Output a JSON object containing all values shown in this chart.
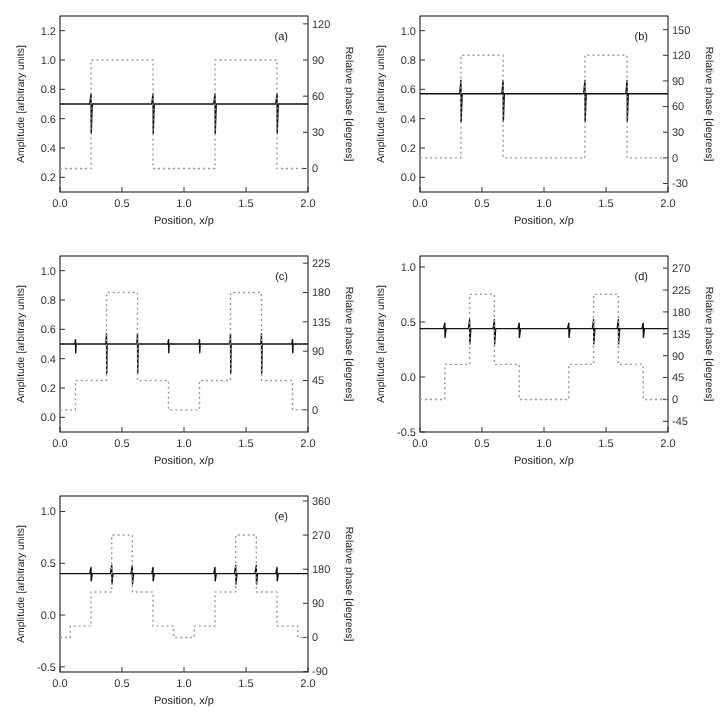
{
  "chart_data": [
    {
      "type": "line",
      "xlabel": "Position, x/p",
      "ylabel": "Amplitude [arbitrary units]",
      "y2label": "Relative phase [degrees]",
      "annotations": [
        "(a)"
      ],
      "xlim": [
        0,
        2
      ],
      "xticks": [
        {
          "value": 0,
          "label": "0.0"
        },
        {
          "value": 0.5,
          "label": "0.5"
        },
        {
          "value": 1,
          "label": "1.0"
        },
        {
          "value": 1.5,
          "label": "1.5"
        },
        {
          "value": 2,
          "label": "2.0"
        }
      ],
      "ylim": [
        0.1,
        1.3
      ],
      "yticks": [
        {
          "value": 0.2,
          "label": "0.2"
        },
        {
          "value": 0.4,
          "label": "0.4"
        },
        {
          "value": 0.6,
          "label": "0.6"
        },
        {
          "value": 0.8,
          "label": "0.8"
        },
        {
          "value": 1,
          "label": "1.0"
        },
        {
          "value": 1.2,
          "label": "1.2"
        }
      ],
      "y2lim": [
        -19.5,
        126.5
      ],
      "y2ticks": [
        0,
        30,
        60,
        90,
        120
      ],
      "series": [
        {
          "color": "#111111",
          "line_style": "solid",
          "x": [
            0,
            0.24,
            0.25,
            0.252,
            0.26,
            0.74,
            0.75,
            0.752,
            0.76,
            1.24,
            1.25,
            1.252,
            1.26,
            1.74,
            1.75,
            1.752,
            1.76,
            2
          ],
          "values": [
            0.7,
            0.7,
            0.77,
            0.5,
            0.7,
            0.7,
            0.77,
            0.5,
            0.7,
            0.7,
            0.77,
            0.5,
            0.7,
            0.7,
            0.77,
            0.5,
            0.7,
            0.7
          ]
        },
        {
          "color": "#999999",
          "line_style": "dotted",
          "axis": "y2",
          "x": [
            0,
            0.25,
            0.25,
            0.75,
            0.75,
            1.25,
            1.25,
            1.75,
            1.75,
            2
          ],
          "values": [
            0,
            0,
            90,
            90,
            0,
            0,
            90,
            90,
            0,
            0
          ]
        }
      ]
    },
    {
      "type": "line",
      "xlabel": "Position, x/p",
      "ylabel": "Amplitude [arbitrary units]",
      "y2label": "Relative phase [degrees]",
      "annotations": [
        "(b)"
      ],
      "xlim": [
        0,
        2
      ],
      "xticks": [
        {
          "value": 0,
          "label": "0.0"
        },
        {
          "value": 0.5,
          "label": "0.5"
        },
        {
          "value": 1,
          "label": "1.0"
        },
        {
          "value": 1.5,
          "label": "1.5"
        },
        {
          "value": 2,
          "label": "2.0"
        }
      ],
      "ylim": [
        -0.1,
        1.1
      ],
      "yticks": [
        {
          "value": 0,
          "label": "0.0"
        },
        {
          "value": 0.2,
          "label": "0.2"
        },
        {
          "value": 0.4,
          "label": "0.4"
        },
        {
          "value": 0.6,
          "label": "0.6"
        },
        {
          "value": 0.8,
          "label": "0.8"
        },
        {
          "value": 1,
          "label": "1.0"
        }
      ],
      "y2lim": [
        -40,
        166
      ],
      "y2ticks": [
        -30,
        0,
        30,
        60,
        90,
        120,
        150
      ],
      "series": [
        {
          "color": "#111111",
          "line_style": "solid",
          "x": [
            0,
            0.32,
            0.33,
            0.332,
            0.34,
            0.66,
            0.67,
            0.672,
            0.68,
            1.32,
            1.33,
            1.332,
            1.34,
            1.66,
            1.67,
            1.672,
            1.68,
            2
          ],
          "values": [
            0.57,
            0.57,
            0.66,
            0.38,
            0.57,
            0.57,
            0.66,
            0.38,
            0.57,
            0.57,
            0.66,
            0.38,
            0.57,
            0.57,
            0.66,
            0.38,
            0.57,
            0.57
          ]
        },
        {
          "color": "#999999",
          "line_style": "dotted",
          "axis": "y2",
          "x": [
            0,
            0.33,
            0.33,
            0.67,
            0.67,
            1.33,
            1.33,
            1.67,
            1.67,
            2
          ],
          "values": [
            0,
            0,
            120,
            120,
            0,
            0,
            120,
            120,
            0,
            0
          ]
        }
      ]
    },
    {
      "type": "line",
      "xlabel": "Position, x/p",
      "ylabel": "Amplitude [arbitrary units]",
      "y2label": "Relative phase [degrees]",
      "annotations": [
        "(c)"
      ],
      "xlim": [
        0,
        2
      ],
      "xticks": [
        {
          "value": 0,
          "label": "0.0"
        },
        {
          "value": 0.5,
          "label": "0.5"
        },
        {
          "value": 1,
          "label": "1.0"
        },
        {
          "value": 1.5,
          "label": "1.5"
        },
        {
          "value": 2,
          "label": "2.0"
        }
      ],
      "ylim": [
        -0.1,
        1.1
      ],
      "yticks": [
        {
          "value": 0,
          "label": "0.0"
        },
        {
          "value": 0.2,
          "label": "0.2"
        },
        {
          "value": 0.4,
          "label": "0.4"
        },
        {
          "value": 0.6,
          "label": "0.6"
        },
        {
          "value": 0.8,
          "label": "0.8"
        },
        {
          "value": 1,
          "label": "1.0"
        }
      ],
      "y2lim": [
        -34,
        236
      ],
      "y2ticks": [
        0,
        45,
        90,
        135,
        180,
        225
      ],
      "series": [
        {
          "color": "#111111",
          "line_style": "solid",
          "x": [
            0,
            0.12,
            0.125,
            0.127,
            0.13,
            0.37,
            0.375,
            0.377,
            0.38,
            0.62,
            0.625,
            0.627,
            0.63,
            0.87,
            0.875,
            0.877,
            0.88,
            1.12,
            1.125,
            1.127,
            1.13,
            1.37,
            1.375,
            1.377,
            1.38,
            1.62,
            1.625,
            1.627,
            1.63,
            1.87,
            1.875,
            1.877,
            1.88,
            2
          ],
          "values": [
            0.5,
            0.5,
            0.53,
            0.44,
            0.5,
            0.5,
            0.57,
            0.3,
            0.5,
            0.5,
            0.57,
            0.3,
            0.5,
            0.5,
            0.53,
            0.44,
            0.5,
            0.5,
            0.53,
            0.44,
            0.5,
            0.5,
            0.57,
            0.3,
            0.5,
            0.5,
            0.57,
            0.3,
            0.5,
            0.5,
            0.53,
            0.44,
            0.5,
            0.5
          ]
        },
        {
          "color": "#999999",
          "line_style": "dotted",
          "axis": "y2",
          "x": [
            0,
            0.125,
            0.125,
            0.375,
            0.375,
            0.625,
            0.625,
            0.875,
            0.875,
            1.125,
            1.125,
            1.375,
            1.375,
            1.625,
            1.625,
            1.875,
            1.875,
            2
          ],
          "values": [
            0,
            0,
            45,
            45,
            180,
            180,
            45,
            45,
            0,
            0,
            45,
            45,
            180,
            180,
            45,
            45,
            0,
            0
          ]
        }
      ]
    },
    {
      "type": "line",
      "xlabel": "Position, x/p",
      "ylabel": "Amplitude [arbitrary units]",
      "y2label": "Relative phase [degrees]",
      "annotations": [
        "(d)"
      ],
      "xlim": [
        0,
        2
      ],
      "xticks": [
        {
          "value": 0,
          "label": "0.0"
        },
        {
          "value": 0.5,
          "label": "0.5"
        },
        {
          "value": 1,
          "label": "1.0"
        },
        {
          "value": 1.5,
          "label": "1.5"
        },
        {
          "value": 2,
          "label": "2.0"
        }
      ],
      "ylim": [
        -0.5,
        1.1
      ],
      "yticks": [
        {
          "value": -0.5,
          "label": "-0.5"
        },
        {
          "value": 0,
          "label": "0.0"
        },
        {
          "value": 0.5,
          "label": "0.5"
        },
        {
          "value": 1,
          "label": "1.0"
        }
      ],
      "y2lim": [
        -67,
        295
      ],
      "y2ticks": [
        -45,
        0,
        45,
        90,
        135,
        180,
        225,
        270
      ],
      "series": [
        {
          "color": "#111111",
          "line_style": "solid",
          "x": [
            0,
            0.19,
            0.2,
            0.202,
            0.21,
            0.39,
            0.4,
            0.402,
            0.41,
            0.59,
            0.6,
            0.602,
            0.61,
            0.79,
            0.8,
            0.802,
            0.81,
            1.19,
            1.2,
            1.202,
            1.21,
            1.39,
            1.4,
            1.402,
            1.41,
            1.59,
            1.6,
            1.602,
            1.61,
            1.79,
            1.8,
            1.802,
            1.81,
            2
          ],
          "values": [
            0.44,
            0.44,
            0.49,
            0.36,
            0.44,
            0.44,
            0.52,
            0.3,
            0.44,
            0.44,
            0.52,
            0.3,
            0.44,
            0.44,
            0.49,
            0.36,
            0.44,
            0.44,
            0.49,
            0.36,
            0.44,
            0.44,
            0.52,
            0.3,
            0.44,
            0.44,
            0.52,
            0.3,
            0.44,
            0.44,
            0.49,
            0.36,
            0.44,
            0.44
          ]
        },
        {
          "color": "#999999",
          "line_style": "dotted",
          "axis": "y2",
          "x": [
            0,
            0.2,
            0.2,
            0.4,
            0.4,
            0.6,
            0.6,
            0.8,
            0.8,
            1.2,
            1.2,
            1.4,
            1.4,
            1.6,
            1.6,
            1.8,
            1.8,
            2
          ],
          "values": [
            0,
            0,
            72,
            72,
            216,
            216,
            72,
            72,
            0,
            0,
            72,
            72,
            216,
            216,
            72,
            72,
            0,
            0
          ]
        }
      ]
    },
    {
      "type": "line",
      "xlabel": "Position, x/p",
      "ylabel": "Amplitude [arbitrary units]",
      "y2label": "Relative phase [degrees]",
      "annotations": [
        "(e)"
      ],
      "xlim": [
        0,
        2
      ],
      "xticks": [
        {
          "value": 0,
          "label": "0.0"
        },
        {
          "value": 0.5,
          "label": "0.5"
        },
        {
          "value": 1,
          "label": "1.0"
        },
        {
          "value": 1.5,
          "label": "1.5"
        },
        {
          "value": 2,
          "label": "2.0"
        }
      ],
      "ylim": [
        -0.55,
        1.15
      ],
      "yticks": [
        {
          "value": -0.5,
          "label": "-0.5"
        },
        {
          "value": 0,
          "label": "0.0"
        },
        {
          "value": 0.5,
          "label": "0.5"
        },
        {
          "value": 1,
          "label": "1.0"
        }
      ],
      "y2lim": [
        -91,
        373
      ],
      "y2ticks": [
        -90,
        0,
        90,
        180,
        270,
        360
      ],
      "series": [
        {
          "color": "#111111",
          "line_style": "solid",
          "x": [
            0,
            0.24,
            0.25,
            0.252,
            0.26,
            0.407,
            0.417,
            0.419,
            0.427,
            0.573,
            0.583,
            0.585,
            0.593,
            0.74,
            0.75,
            0.752,
            0.76,
            1.24,
            1.25,
            1.252,
            1.26,
            1.407,
            1.417,
            1.419,
            1.427,
            1.573,
            1.583,
            1.585,
            1.593,
            1.74,
            1.75,
            1.752,
            1.76,
            2
          ],
          "values": [
            0.4,
            0.4,
            0.46,
            0.33,
            0.4,
            0.4,
            0.48,
            0.3,
            0.4,
            0.4,
            0.48,
            0.3,
            0.4,
            0.4,
            0.46,
            0.33,
            0.4,
            0.4,
            0.46,
            0.33,
            0.4,
            0.4,
            0.48,
            0.3,
            0.4,
            0.4,
            0.48,
            0.3,
            0.4,
            0.4,
            0.46,
            0.33,
            0.4,
            0.4
          ]
        },
        {
          "color": "#999999",
          "line_style": "dotted",
          "axis": "y2",
          "x": [
            0,
            0.083,
            0.083,
            0.25,
            0.25,
            0.417,
            0.417,
            0.583,
            0.583,
            0.75,
            0.75,
            0.917,
            0.917,
            1.083,
            1.083,
            1.25,
            1.25,
            1.417,
            1.417,
            1.583,
            1.583,
            1.75,
            1.75,
            1.917,
            1.917,
            2
          ],
          "values": [
            0,
            0,
            30,
            30,
            120,
            120,
            270,
            270,
            120,
            120,
            30,
            30,
            0,
            0,
            30,
            30,
            120,
            120,
            270,
            270,
            120,
            120,
            30,
            30,
            0,
            0
          ]
        }
      ]
    }
  ]
}
